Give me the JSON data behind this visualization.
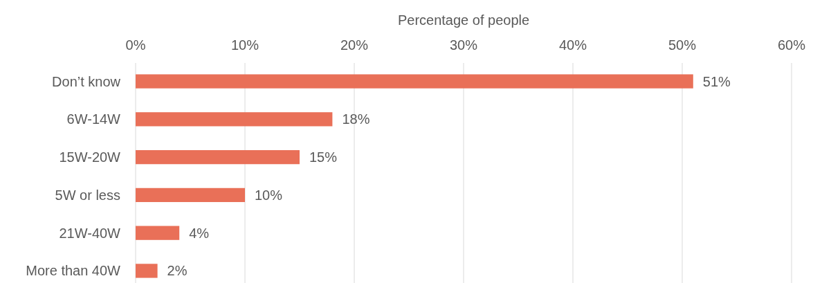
{
  "chart_data": {
    "type": "bar",
    "orientation": "horizontal",
    "xlabel": "Percentage of people",
    "categories": [
      "Don’t know",
      "6W-14W",
      "15W-20W",
      "5W or less",
      "21W-40W",
      "More than 40W"
    ],
    "values": [
      51,
      18,
      15,
      10,
      4,
      2
    ],
    "value_labels": [
      "51%",
      "18%",
      "15%",
      "10%",
      "4%",
      "2%"
    ],
    "color": "#e97058",
    "xlim": [
      0,
      60
    ],
    "xticks": [
      {
        "value": 0,
        "label": "0%"
      },
      {
        "value": 10,
        "label": "10%"
      },
      {
        "value": 20,
        "label": "20%"
      },
      {
        "value": 30,
        "label": "30%"
      },
      {
        "value": 40,
        "label": "40%"
      },
      {
        "value": 50,
        "label": "50%"
      },
      {
        "value": 60,
        "label": "60%"
      }
    ],
    "grid": true
  }
}
